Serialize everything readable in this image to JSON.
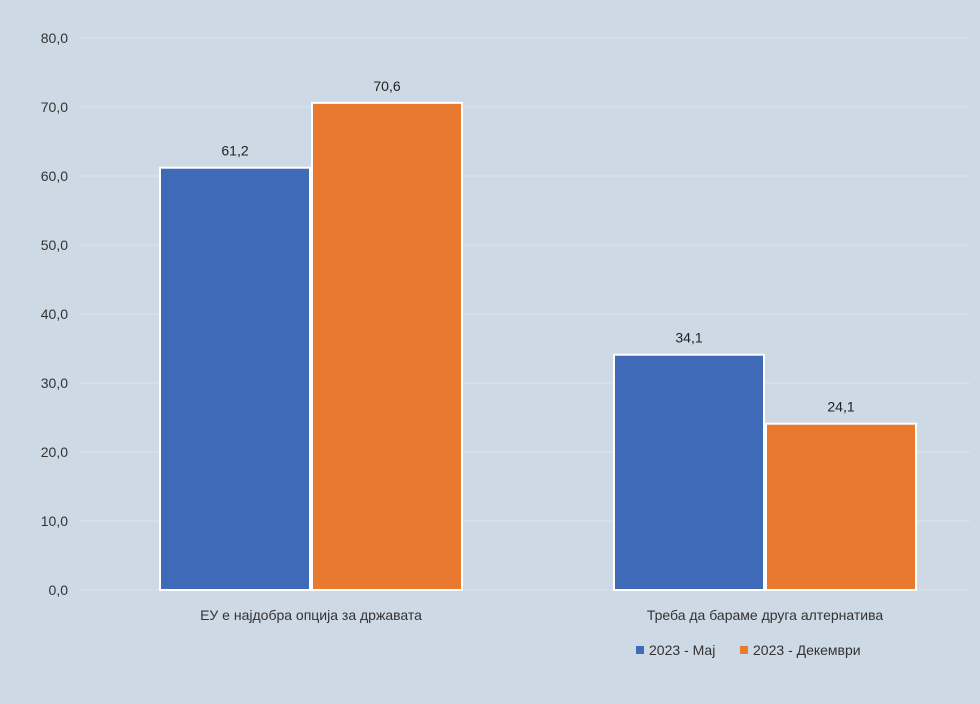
{
  "chart_data": {
    "type": "bar",
    "title": "",
    "categories": [
      "ЕУ е најдобра опција за државата",
      "Треба да бараме друга алтернатива"
    ],
    "series": [
      {
        "name": "2023 - Мај",
        "values": [
          61.2,
          34.1
        ],
        "color": "#3f6ab8"
      },
      {
        "name": "2023 - Декември",
        "values": [
          70.6,
          24.1
        ],
        "color": "#e8792e"
      }
    ],
    "data_labels": [
      [
        "61,2",
        "34,1"
      ],
      [
        "70,6",
        "24,1"
      ]
    ],
    "yticks": [
      "0,0",
      "10,0",
      "20,0",
      "30,0",
      "40,0",
      "50,0",
      "60,0",
      "70,0",
      "80,0"
    ],
    "ylim": [
      0,
      80
    ],
    "xlabel": "",
    "ylabel": "",
    "grid": true,
    "legend_position": "bottom-right"
  }
}
